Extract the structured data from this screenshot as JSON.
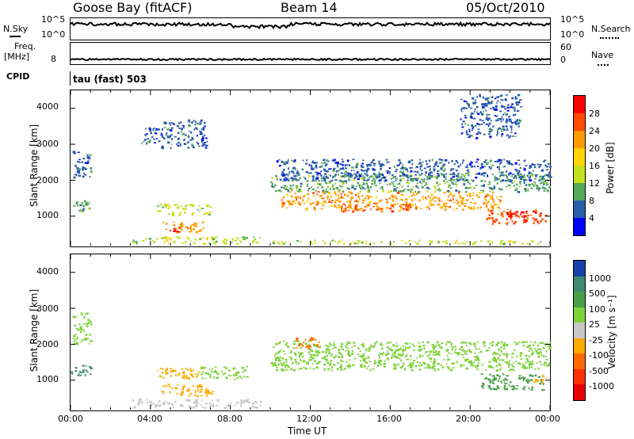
{
  "header": {
    "station": "Goose Bay (fitACF)",
    "beam": "Beam 14",
    "date": "05/Oct/2010"
  },
  "param_panels": {
    "nsky_label": "N.Sky",
    "nsky_ticks": [
      "10^5",
      "10^0"
    ],
    "nsearch_label": "N.Search",
    "nsearch_ticks": [
      "10^5",
      "10^0"
    ],
    "freq_label": "Freq.",
    "freq_unit": "[MHz]",
    "freq_tick": "8",
    "nave_label": "Nave",
    "nave_ticks": [
      "60",
      "0"
    ],
    "cpid_label": "CPID",
    "cpid_text": "tau (fast) 503"
  },
  "axes": {
    "ylabel": "Slant Range [km]",
    "yticks": [
      "4000",
      "3000",
      "2000",
      "1000"
    ],
    "xticks": [
      "00:00",
      "04:00",
      "08:00",
      "12:00",
      "16:00",
      "20:00",
      "00:00"
    ],
    "xlabel": "Time UT"
  },
  "colorbars": {
    "power": {
      "label": "Power [dB]",
      "ticks": [
        "28",
        "24",
        "20",
        "16",
        "12",
        "8",
        "4"
      ],
      "colors": [
        "#ff0000",
        "#ff4b00",
        "#ff9a00",
        "#ffd400",
        "#c3e01e",
        "#55a85a",
        "#2a5ea8",
        "#0000ff"
      ]
    },
    "velocity": {
      "label": "Velocity [m s⁻¹]",
      "ticks": [
        "1000",
        "500",
        "100",
        "25",
        "-25",
        "-100",
        "-500",
        "-1000"
      ],
      "colors": [
        "#1a3fa8",
        "#3d8a70",
        "#4aa048",
        "#7ed23a",
        "#c8c8c8",
        "#ffaa00",
        "#ff6a00",
        "#ff3000",
        "#e80000"
      ]
    }
  },
  "chart_data": {
    "type": "heatmap",
    "title": "Goose Bay (fitACF)",
    "x_range": [
      "00:00",
      "00:00"
    ],
    "ylim": [
      180,
      4500
    ],
    "xlabel": "Time UT",
    "ylabel": "Slant Range [km]",
    "power_regions": [
      {
        "t": [
          0.0,
          1.1
        ],
        "r": [
          1150,
          1450
        ],
        "level": 8
      },
      {
        "t": [
          0.1,
          1.0
        ],
        "r": [
          2100,
          2900
        ],
        "level": 4
      },
      {
        "t": [
          3.5,
          4.4
        ],
        "r": [
          3000,
          3500
        ],
        "level": 4
      },
      {
        "t": [
          4.5,
          6.8
        ],
        "r": [
          2900,
          3700
        ],
        "level": 4
      },
      {
        "t": [
          4.3,
          7.0
        ],
        "r": [
          1050,
          1350
        ],
        "level": 12
      },
      {
        "t": [
          4.6,
          6.6
        ],
        "r": [
          550,
          850
        ],
        "level": 20
      },
      {
        "t": [
          5.0,
          6.1
        ],
        "r": [
          580,
          720
        ],
        "level": 28
      },
      {
        "t": [
          3.0,
          9.5
        ],
        "r": [
          250,
          450
        ],
        "level": 12
      },
      {
        "t": [
          10.0,
          24.0
        ],
        "r": [
          1700,
          2200
        ],
        "level": 8
      },
      {
        "t": [
          10.5,
          21.5
        ],
        "r": [
          1200,
          1700
        ],
        "level": 20
      },
      {
        "t": [
          13.5,
          17.0
        ],
        "r": [
          1150,
          1350
        ],
        "level": 24
      },
      {
        "t": [
          10.3,
          24.0
        ],
        "r": [
          2000,
          2600
        ],
        "level": 4
      },
      {
        "t": [
          19.5,
          22.5
        ],
        "r": [
          3200,
          4400
        ],
        "level": 4
      },
      {
        "t": [
          20.8,
          23.8
        ],
        "r": [
          800,
          1200
        ],
        "level": 24
      },
      {
        "t": [
          21.8,
          23.3
        ],
        "r": [
          900,
          1150
        ],
        "level": 28
      },
      {
        "t": [
          10.0,
          24.0
        ],
        "r": [
          250,
          350
        ],
        "level": 12
      }
    ],
    "velocity_regions": [
      {
        "t": [
          0.0,
          1.0
        ],
        "r": [
          1150,
          1450
        ],
        "level": 500
      },
      {
        "t": [
          0.1,
          1.0
        ],
        "r": [
          2000,
          2900
        ],
        "level": 25
      },
      {
        "t": [
          4.3,
          6.6
        ],
        "r": [
          1050,
          1350
        ],
        "level": -100
      },
      {
        "t": [
          4.5,
          7.2
        ],
        "r": [
          550,
          900
        ],
        "level": -100
      },
      {
        "t": [
          3.0,
          9.5
        ],
        "r": [
          250,
          500
        ],
        "level": -25
      },
      {
        "t": [
          6.5,
          8.8
        ],
        "r": [
          1050,
          1400
        ],
        "level": 25
      },
      {
        "t": [
          10.0,
          24.0
        ],
        "r": [
          1300,
          2100
        ],
        "level": 25
      },
      {
        "t": [
          11.2,
          12.4
        ],
        "r": [
          1900,
          2200
        ],
        "level": -500
      },
      {
        "t": [
          20.5,
          23.7
        ],
        "r": [
          750,
          1200
        ],
        "level": 100
      },
      {
        "t": [
          23.0,
          23.8
        ],
        "r": [
          950,
          1150
        ],
        "level": -100
      }
    ],
    "nsky_level": 0.72,
    "nave_level": 0.15
  }
}
